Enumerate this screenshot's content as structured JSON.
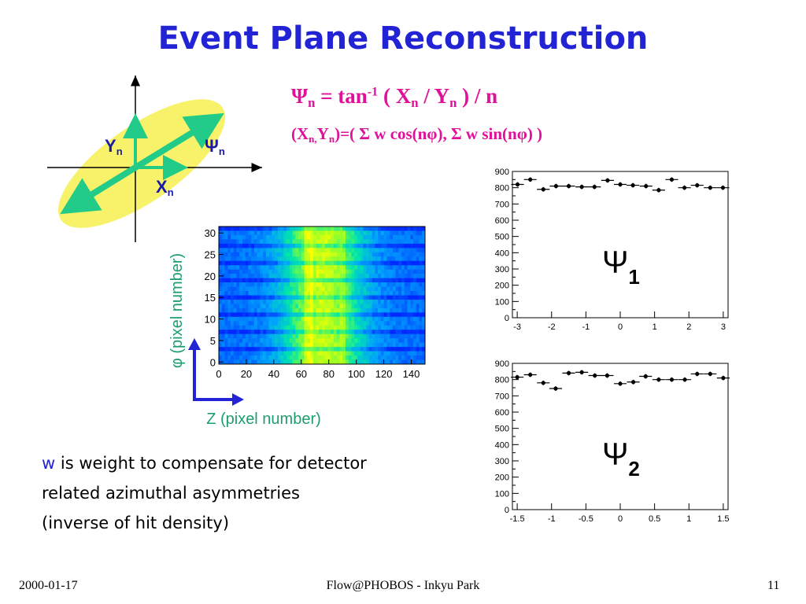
{
  "slide": {
    "title": "Event Plane Reconstruction",
    "formula1": {
      "psi": "Ψ",
      "psi_sub": "n",
      "eq_tan": " = tan",
      "tan_sup": "-1",
      "open": " ( X",
      "x_sub": "n",
      "slash": " / Y",
      "y_sub": "n",
      "close": " ) / n"
    },
    "formula2": {
      "open": "(X",
      "x_sub": "n,",
      "y": "Y",
      "y_sub": "n",
      "rest": ")=( Σ w cos(nφ), Σ w sin(nφ) )"
    },
    "weight_text": {
      "w": "w",
      "line1": " is weight to compensate for detector",
      "line2": "related azimuthal asymmetries",
      "line3": "(inverse of hit density)"
    },
    "footer": {
      "date": "2000-01-17",
      "center": "Flow@PHOBOS - Inkyu Park",
      "page": "11"
    }
  },
  "diagram": {
    "y_label": "Y",
    "y_sub": "n",
    "x_label": "X",
    "x_sub": "n",
    "psi_label": "Ψ",
    "psi_sub": "n",
    "colors": {
      "ellipse": "#f7f26a",
      "arrow": "#22cc88",
      "axis": "#000000",
      "label": "#1a1aa8"
    }
  },
  "heatmap": {
    "xlabel": "Z (pixel number)",
    "ylabel": "φ (pixel number)",
    "x_ticks": [
      "0",
      "20",
      "40",
      "60",
      "80",
      "100",
      "120",
      "140"
    ],
    "y_ticks": [
      "0",
      "5",
      "10",
      "15",
      "20",
      "25",
      "30"
    ],
    "colors": {
      "axis_label": "#1e9e6e",
      "corner_arrow": "#2323d6"
    }
  },
  "chart_data": [
    {
      "type": "scatter",
      "title": "",
      "label": "Ψ",
      "label_sub": "1",
      "x_ticks": [
        "-3",
        "-2",
        "-1",
        "0",
        "1",
        "2",
        "3"
      ],
      "y_ticks": [
        "0",
        "100",
        "200",
        "300",
        "400",
        "500",
        "600",
        "700",
        "800",
        "900"
      ],
      "xlim": [
        -3.14,
        3.14
      ],
      "ylim": [
        0,
        900
      ],
      "x": [
        -2.99,
        -2.62,
        -2.24,
        -1.87,
        -1.5,
        -1.12,
        -0.75,
        -0.37,
        0.0,
        0.37,
        0.75,
        1.12,
        1.5,
        1.87,
        2.24,
        2.62,
        2.99
      ],
      "y": [
        820,
        850,
        790,
        810,
        810,
        805,
        805,
        845,
        820,
        815,
        810,
        785,
        850,
        800,
        815,
        800,
        800
      ]
    },
    {
      "type": "scatter",
      "title": "",
      "label": "Ψ",
      "label_sub": "2",
      "x_ticks": [
        "-1.5",
        "-1",
        "-0.5",
        "0",
        "0.5",
        "1",
        "1.5"
      ],
      "y_ticks": [
        "0",
        "100",
        "200",
        "300",
        "400",
        "500",
        "600",
        "700",
        "800",
        "900"
      ],
      "xlim": [
        -1.57,
        1.57
      ],
      "ylim": [
        0,
        900
      ],
      "x": [
        -1.5,
        -1.31,
        -1.12,
        -0.94,
        -0.75,
        -0.56,
        -0.37,
        -0.19,
        0.0,
        0.19,
        0.37,
        0.56,
        0.75,
        0.94,
        1.12,
        1.31,
        1.5
      ],
      "y": [
        815,
        830,
        780,
        745,
        840,
        845,
        825,
        825,
        775,
        785,
        820,
        800,
        800,
        800,
        835,
        835,
        810
      ]
    }
  ]
}
